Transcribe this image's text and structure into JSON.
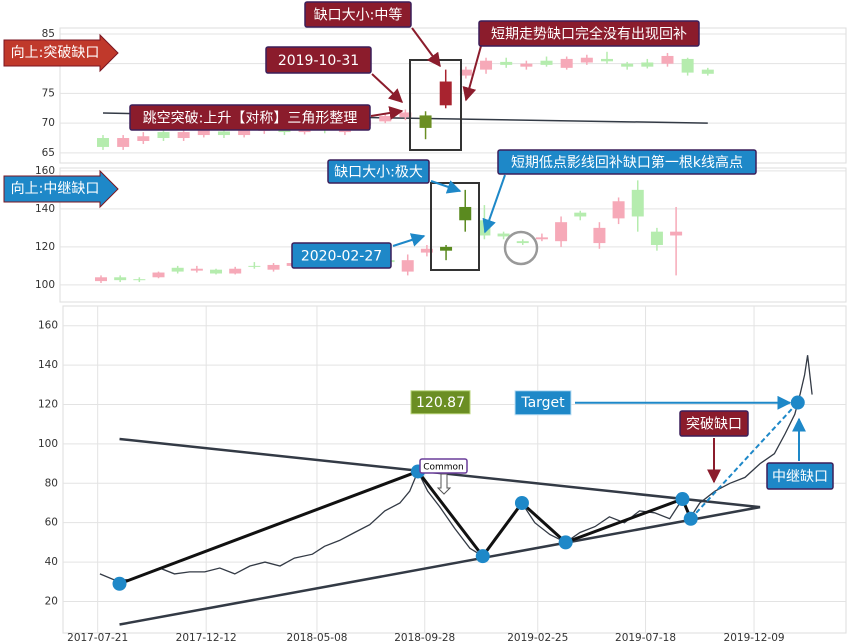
{
  "chart_data": [
    {
      "type": "candlestick",
      "title": "向上:突破缺口",
      "annotations": [
        "缺口大小:中等",
        "短期走势缺口完全没有出现回补",
        "2019-10-31",
        "跳空突破:上升【对称】三角形整理"
      ],
      "open": [
        67.5,
        66,
        67,
        68.5,
        67.5,
        68,
        68.6,
        68,
        68.7,
        69,
        68.5,
        69.2,
        68.5,
        69.6,
        70.3,
        71,
        71.3,
        73,
        78,
        79,
        80.3,
        79.5,
        80.5,
        79.3,
        80.2,
        80.8,
        80,
        80.2,
        80,
        80.8,
        79
      ],
      "high": [
        68,
        68,
        68.5,
        69,
        69,
        69.3,
        69,
        69.2,
        69.5,
        69.5,
        69.8,
        69.8,
        70.3,
        71,
        71.7,
        72.3,
        72,
        79,
        79.5,
        81,
        81,
        80.5,
        81.2,
        81.2,
        81.5,
        82,
        80.3,
        80.8,
        81.8,
        81,
        79.3
      ],
      "low": [
        65.5,
        65.5,
        66.5,
        67,
        67,
        67.6,
        67.5,
        67.6,
        68.2,
        68,
        68.1,
        68.3,
        68,
        69,
        70,
        70.5,
        67.3,
        72.5,
        77.5,
        78.3,
        79.3,
        79,
        79.5,
        79,
        79.8,
        80,
        79,
        79.2,
        79.5,
        78,
        78
      ],
      "close": [
        66,
        67.5,
        67.8,
        67.5,
        68.5,
        68.8,
        68,
        68.8,
        69,
        68.5,
        69.3,
        68.8,
        69.8,
        70.5,
        71.2,
        71.8,
        69.2,
        77,
        79,
        80.5,
        79.8,
        80,
        79.8,
        80.8,
        81,
        80.4,
        79.5,
        79.5,
        81.3,
        78.5,
        78.3
      ],
      "colors": [
        "#b5ecae",
        "#f6a9b8",
        "#f6a9b8",
        "#b5ecae",
        "#f6a9b8",
        "#f6a9b8",
        "#b5ecae",
        "#f6a9b8",
        "#f6a9b8",
        "#b5ecae",
        "#f6a9b8",
        "#b5ecae",
        "#f6a9b8",
        "#f6a9b8",
        "#f6a9b8",
        "#f6a9b8",
        "#6b8e23",
        "#a8232f",
        "#f6a9b8",
        "#f6a9b8",
        "#b5ecae",
        "#f6a9b8",
        "#b5ecae",
        "#f6a9b8",
        "#f6a9b8",
        "#b5ecae",
        "#b5ecae",
        "#b5ecae",
        "#f6a9b8",
        "#b5ecae",
        "#b5ecae"
      ],
      "trendline": [
        71.7,
        70.0
      ],
      "ylim": [
        63.3,
        86
      ],
      "yticks": [
        65,
        70,
        75,
        80,
        85
      ],
      "grid": true
    },
    {
      "type": "candlestick",
      "title": "向上:中继缺口",
      "annotations": [
        "缺口大小:极大",
        "短期低点影线回补缺口第一根k线高点",
        "2020-02-27"
      ],
      "open": [
        102,
        104,
        103,
        104,
        109,
        107.5,
        108,
        106,
        110,
        108,
        110,
        112,
        111,
        113,
        112,
        113,
        107,
        117,
        120,
        141,
        134,
        127,
        123,
        124,
        123,
        138,
        122,
        135,
        150,
        128,
        126
      ],
      "high": [
        105,
        105,
        104,
        107,
        110,
        110,
        108.5,
        109.5,
        112,
        111.5,
        112.5,
        113,
        114,
        114,
        114.5,
        114,
        116,
        121,
        121,
        150,
        142,
        128,
        124,
        127,
        136,
        139,
        133,
        146,
        155,
        130,
        141
      ],
      "low": [
        101,
        101.5,
        101.5,
        103.5,
        106,
        106.5,
        105.5,
        105.5,
        108.5,
        107,
        109.5,
        110,
        110.5,
        111,
        111.5,
        110,
        105,
        115,
        113,
        128,
        124,
        124,
        121,
        123,
        120,
        134,
        119,
        132,
        128,
        118,
        105
      ],
      "close": [
        104,
        102.5,
        102.5,
        106.5,
        107,
        108.5,
        106,
        108.5,
        109.5,
        110.5,
        111.5,
        111,
        112.5,
        112,
        113,
        112,
        113,
        119,
        118,
        134,
        126,
        125.5,
        122,
        125,
        133,
        136,
        130,
        144,
        136,
        121,
        128
      ],
      "colors": [
        "#f6a9b8",
        "#b5ecae",
        "#b5ecae",
        "#f6a9b8",
        "#b5ecae",
        "#f6a9b8",
        "#b5ecae",
        "#f6a9b8",
        "#b5ecae",
        "#f6a9b8",
        "#f6a9b8",
        "#b5ecae",
        "#f6a9b8",
        "#b5ecae",
        "#f6a9b8",
        "#b5ecae",
        "#f6a9b8",
        "#f6a9b8",
        "#5a8a1f",
        "#5a8a1f",
        "#b5ecae",
        "#b5ecae",
        "#b5ecae",
        "#f6a9b8",
        "#f6a9b8",
        "#b5ecae",
        "#f6a9b8",
        "#f6a9b8",
        "#b5ecae",
        "#b5ecae",
        "#f6a9b8"
      ],
      "ylim": [
        91,
        161.5
      ],
      "yticks": [
        100,
        120,
        140,
        160
      ],
      "grid": true
    },
    {
      "type": "line",
      "color": "#333a45",
      "x": [
        "2017-07-24",
        "2017-08-12",
        "2017-09-01",
        "2017-09-21",
        "2017-10-11",
        "2017-10-31",
        "2017-11-20",
        "2017-12-10",
        "2017-12-30",
        "2018-01-19",
        "2018-02-08",
        "2018-02-28",
        "2018-03-20",
        "2018-04-08",
        "2018-05-02",
        "2018-05-18",
        "2018-06-07",
        "2018-06-27",
        "2018-07-17",
        "2018-08-06",
        "2018-08-26",
        "2018-09-08",
        "2018-09-19",
        "2018-10-02",
        "2018-10-18",
        "2018-11-07",
        "2018-11-27",
        "2018-12-14",
        "2018-12-30",
        "2019-01-19",
        "2019-02-04",
        "2019-02-21",
        "2019-03-13",
        "2019-04-03",
        "2019-04-22",
        "2019-05-12",
        "2019-05-31",
        "2019-06-20",
        "2019-07-10",
        "2019-07-30",
        "2019-08-19",
        "2019-09-05",
        "2019-09-16",
        "2019-09-28",
        "2019-10-18",
        "2019-11-07",
        "2019-11-27",
        "2019-12-17",
        "2020-01-05",
        "2020-01-19",
        "2020-02-01",
        "2020-02-08",
        "2020-02-14",
        "2020-02-18",
        "2020-02-24"
      ],
      "values": [
        34,
        31,
        31,
        34,
        37,
        34,
        35,
        35,
        37,
        34,
        38,
        40,
        38,
        42,
        44,
        48,
        51,
        55,
        59,
        66,
        70,
        76,
        86,
        76,
        68,
        57,
        47,
        43,
        52,
        62,
        70,
        60,
        54,
        50,
        55,
        58,
        63,
        60,
        66,
        65,
        62,
        72,
        63,
        70,
        76,
        80,
        83,
        90,
        95,
        105,
        115,
        125,
        135,
        145,
        125
      ],
      "pivots": {
        "x": [
          "2017-08-19",
          "2018-09-19",
          "2018-12-14",
          "2019-02-04",
          "2019-04-03",
          "2019-09-05",
          "2019-09-16",
          "2020-02-05"
        ],
        "values": [
          29,
          86,
          43,
          70,
          50,
          72,
          62,
          121
        ],
        "color": "#1e88c8"
      },
      "trendlines": [
        {
          "x": [
            "2017-08-19",
            "2019-12-17"
          ],
          "values": [
            102.5,
            67.9
          ]
        },
        {
          "x": [
            "2017-08-19",
            "2019-12-17"
          ],
          "values": [
            8.3,
            67.9
          ]
        }
      ],
      "target": {
        "label": "Target",
        "value": 120.87
      },
      "annotations": [
        "突破缺口",
        "中继缺口",
        "Common"
      ],
      "xlim": [
        "2017-06-05",
        "2020-04-09"
      ],
      "xticks": [
        "2017-07-21",
        "2017-12-12",
        "2018-05-08",
        "2018-09-28",
        "2019-02-25",
        "2019-07-18",
        "2019-12-09"
      ],
      "ylim": [
        4,
        170
      ],
      "yticks": [
        20,
        40,
        60,
        80,
        100,
        120,
        140,
        160
      ],
      "grid": true
    }
  ]
}
